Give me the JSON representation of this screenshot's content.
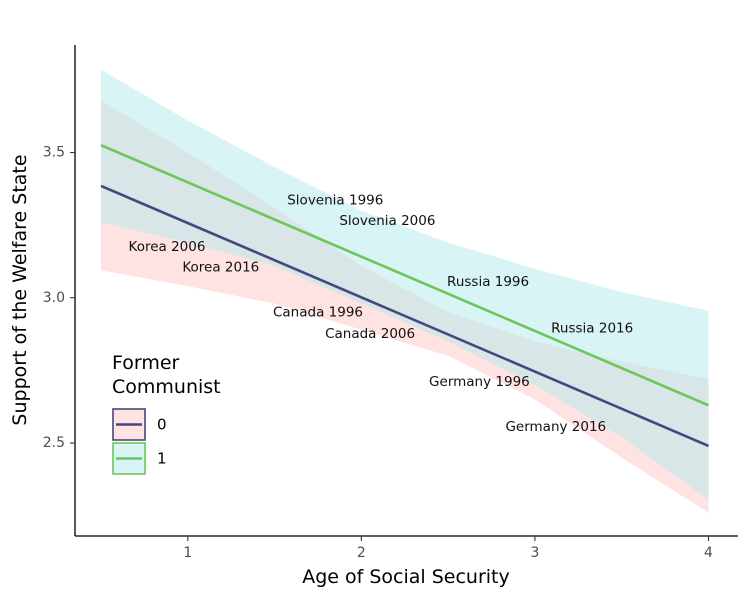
{
  "chart_data": {
    "type": "line",
    "title": "",
    "xlabel": "Age of Social Security",
    "ylabel": "Support of the Welfare State",
    "xlim": [
      0.35,
      4.17
    ],
    "ylim": [
      2.18,
      3.87
    ],
    "xticks": [
      1,
      2,
      3,
      4
    ],
    "yticks": [
      2.5,
      3.0,
      3.5
    ],
    "xtick_labels": [
      "1",
      "2",
      "3",
      "4"
    ],
    "ytick_labels": [
      "2.5",
      "3.0",
      "3.5"
    ],
    "grid": false,
    "legend": {
      "title_lines": [
        "Former",
        "Communist"
      ],
      "position": "bottom-left inside",
      "entries": [
        "0",
        "1"
      ]
    },
    "series": [
      {
        "name": "0",
        "color": "#45477f",
        "fill": "#ffc8c8",
        "x": [
          0.5,
          4.0
        ],
        "y": [
          3.385,
          2.49
        ],
        "band": {
          "x": [
            0.5,
            1.0,
            1.5,
            2.0,
            2.5,
            3.0,
            3.5,
            4.0
          ],
          "upper": [
            3.68,
            3.5,
            3.31,
            3.11,
            2.95,
            2.85,
            2.78,
            2.72
          ],
          "lower": [
            3.095,
            3.04,
            2.98,
            2.89,
            2.8,
            2.65,
            2.45,
            2.26
          ]
        }
      },
      {
        "name": "1",
        "color": "#6cc65c",
        "fill": "#b4e9ec",
        "x": [
          0.5,
          4.0
        ],
        "y": [
          3.525,
          2.63
        ],
        "band": {
          "x": [
            0.5,
            1.0,
            1.5,
            2.0,
            2.5,
            3.0,
            3.5,
            4.0
          ],
          "upper": [
            3.785,
            3.61,
            3.45,
            3.3,
            3.19,
            3.1,
            3.02,
            2.955
          ],
          "lower": [
            3.26,
            3.19,
            3.11,
            2.98,
            2.85,
            2.7,
            2.52,
            2.305
          ]
        }
      }
    ],
    "annotations": [
      {
        "text": "Slovenia 1996",
        "x": 1.85,
        "y": 3.335
      },
      {
        "text": "Slovenia 2006",
        "x": 2.15,
        "y": 3.265
      },
      {
        "text": "Korea 2006",
        "x": 0.88,
        "y": 3.175
      },
      {
        "text": "Korea 2016",
        "x": 1.19,
        "y": 3.105
      },
      {
        "text": "Russia 1996",
        "x": 2.73,
        "y": 3.055
      },
      {
        "text": "Russia 2016",
        "x": 3.33,
        "y": 2.895
      },
      {
        "text": "Canada 1996",
        "x": 1.75,
        "y": 2.95
      },
      {
        "text": "Canada 2006",
        "x": 2.05,
        "y": 2.875
      },
      {
        "text": "Germany 1996",
        "x": 2.68,
        "y": 2.71
      },
      {
        "text": "Germany 2016",
        "x": 3.12,
        "y": 2.555
      }
    ]
  }
}
